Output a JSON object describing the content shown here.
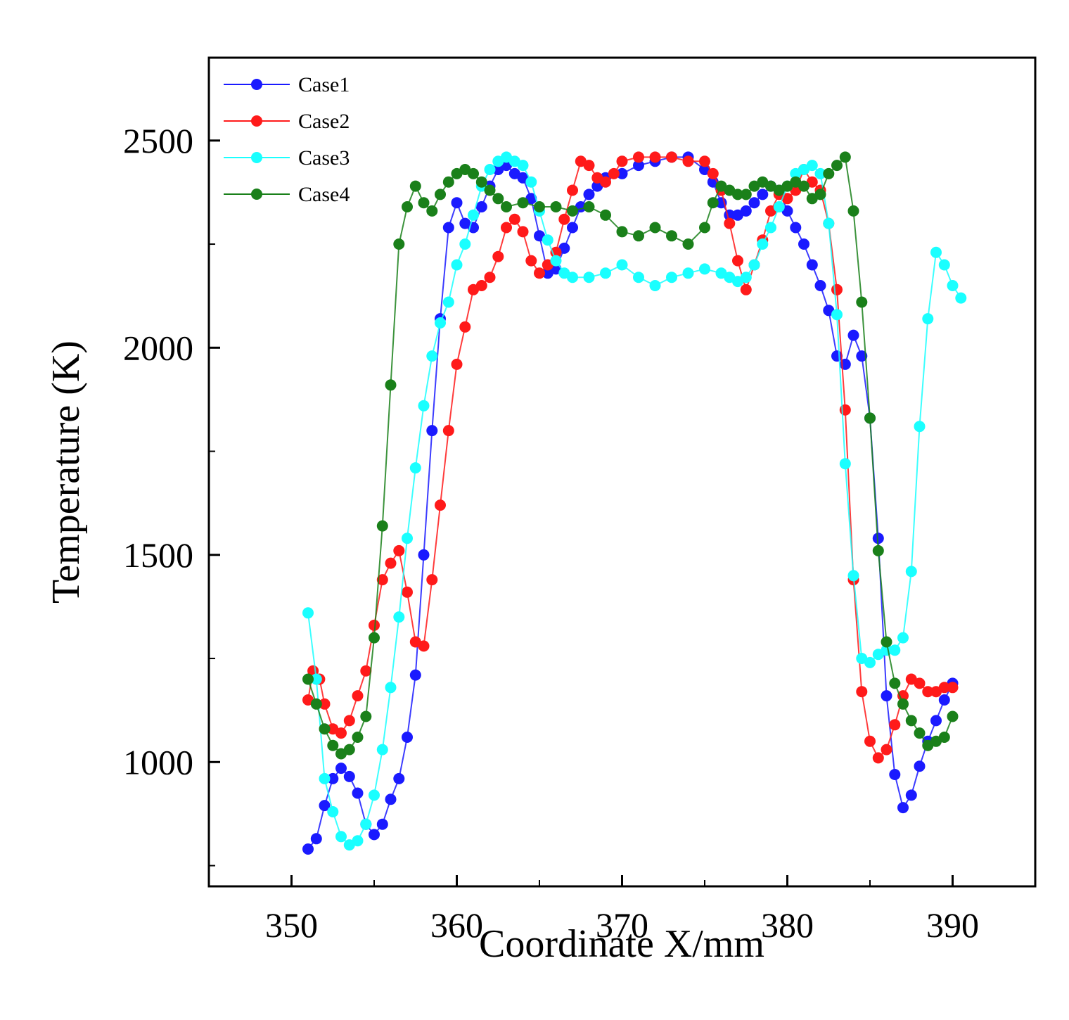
{
  "chart_data": {
    "type": "line",
    "title": "",
    "xlabel": "Coordinate X/mm",
    "ylabel": "Temperature (K)",
    "xlim": [
      345,
      395
    ],
    "ylim": [
      700,
      2700
    ],
    "xticks": [
      350,
      360,
      370,
      380,
      390
    ],
    "yticks": [
      1000,
      1500,
      2000,
      2500
    ],
    "x_minor_ticks": [
      355,
      365,
      375,
      385
    ],
    "y_minor_ticks": [
      750,
      1250,
      1750,
      2250
    ],
    "legend_position": "top-left",
    "grid": false,
    "series": [
      {
        "name": "Case1",
        "color": "#1a1aff",
        "points": [
          [
            351.0,
            790
          ],
          [
            351.5,
            815
          ],
          [
            352.0,
            895
          ],
          [
            352.5,
            960
          ],
          [
            353.0,
            985
          ],
          [
            353.5,
            965
          ],
          [
            354.0,
            925
          ],
          [
            354.5,
            850
          ],
          [
            355.0,
            825
          ],
          [
            355.5,
            850
          ],
          [
            356.0,
            910
          ],
          [
            356.5,
            960
          ],
          [
            357.0,
            1060
          ],
          [
            357.5,
            1210
          ],
          [
            358.0,
            1500
          ],
          [
            358.5,
            1800
          ],
          [
            359.0,
            2070
          ],
          [
            359.5,
            2290
          ],
          [
            360.0,
            2350
          ],
          [
            360.5,
            2300
          ],
          [
            361.0,
            2290
          ],
          [
            361.5,
            2340
          ],
          [
            362.0,
            2390
          ],
          [
            362.5,
            2430
          ],
          [
            363.0,
            2440
          ],
          [
            363.5,
            2420
          ],
          [
            364.0,
            2410
          ],
          [
            364.5,
            2360
          ],
          [
            365.0,
            2270
          ],
          [
            365.5,
            2180
          ],
          [
            366.0,
            2190
          ],
          [
            366.5,
            2240
          ],
          [
            367.0,
            2290
          ],
          [
            367.5,
            2340
          ],
          [
            368.0,
            2370
          ],
          [
            368.5,
            2390
          ],
          [
            369.0,
            2410
          ],
          [
            370.0,
            2420
          ],
          [
            371.0,
            2440
          ],
          [
            372.0,
            2450
          ],
          [
            373.0,
            2460
          ],
          [
            374.0,
            2460
          ],
          [
            375.0,
            2430
          ],
          [
            375.5,
            2400
          ],
          [
            376.0,
            2350
          ],
          [
            376.5,
            2320
          ],
          [
            377.0,
            2320
          ],
          [
            377.5,
            2330
          ],
          [
            378.0,
            2350
          ],
          [
            378.5,
            2370
          ],
          [
            379.0,
            2390
          ],
          [
            379.5,
            2380
          ],
          [
            380.0,
            2330
          ],
          [
            380.5,
            2290
          ],
          [
            381.0,
            2250
          ],
          [
            381.5,
            2200
          ],
          [
            382.0,
            2150
          ],
          [
            382.5,
            2090
          ],
          [
            383.0,
            1980
          ],
          [
            383.5,
            1960
          ],
          [
            384.0,
            2030
          ],
          [
            384.5,
            1980
          ],
          [
            385.0,
            1830
          ],
          [
            385.5,
            1540
          ],
          [
            386.0,
            1160
          ],
          [
            386.5,
            970
          ],
          [
            387.0,
            890
          ],
          [
            387.5,
            920
          ],
          [
            388.0,
            990
          ],
          [
            388.5,
            1050
          ],
          [
            389.0,
            1100
          ],
          [
            389.5,
            1150
          ],
          [
            390.0,
            1190
          ]
        ]
      },
      {
        "name": "Case2",
        "color": "#ff1a1a",
        "points": [
          [
            351.0,
            1150
          ],
          [
            351.3,
            1220
          ],
          [
            351.7,
            1200
          ],
          [
            352.0,
            1140
          ],
          [
            352.5,
            1080
          ],
          [
            353.0,
            1070
          ],
          [
            353.5,
            1100
          ],
          [
            354.0,
            1160
          ],
          [
            354.5,
            1220
          ],
          [
            355.0,
            1330
          ],
          [
            355.5,
            1440
          ],
          [
            356.0,
            1480
          ],
          [
            356.5,
            1510
          ],
          [
            357.0,
            1410
          ],
          [
            357.5,
            1290
          ],
          [
            358.0,
            1280
          ],
          [
            358.5,
            1440
          ],
          [
            359.0,
            1620
          ],
          [
            359.5,
            1800
          ],
          [
            360.0,
            1960
          ],
          [
            360.5,
            2050
          ],
          [
            361.0,
            2140
          ],
          [
            361.5,
            2150
          ],
          [
            362.0,
            2170
          ],
          [
            362.5,
            2220
          ],
          [
            363.0,
            2290
          ],
          [
            363.5,
            2310
          ],
          [
            364.0,
            2280
          ],
          [
            364.5,
            2210
          ],
          [
            365.0,
            2180
          ],
          [
            365.5,
            2200
          ],
          [
            366.0,
            2230
          ],
          [
            366.5,
            2310
          ],
          [
            367.0,
            2380
          ],
          [
            367.5,
            2450
          ],
          [
            368.0,
            2440
          ],
          [
            368.5,
            2410
          ],
          [
            369.0,
            2400
          ],
          [
            369.5,
            2420
          ],
          [
            370.0,
            2450
          ],
          [
            371.0,
            2460
          ],
          [
            372.0,
            2460
          ],
          [
            373.0,
            2460
          ],
          [
            374.0,
            2450
          ],
          [
            375.0,
            2450
          ],
          [
            375.5,
            2420
          ],
          [
            376.0,
            2380
          ],
          [
            376.5,
            2300
          ],
          [
            377.0,
            2210
          ],
          [
            377.5,
            2140
          ],
          [
            378.0,
            2200
          ],
          [
            378.5,
            2260
          ],
          [
            379.0,
            2330
          ],
          [
            379.5,
            2370
          ],
          [
            380.0,
            2360
          ],
          [
            380.5,
            2380
          ],
          [
            381.0,
            2430
          ],
          [
            381.5,
            2400
          ],
          [
            382.0,
            2380
          ],
          [
            382.5,
            2300
          ],
          [
            383.0,
            2140
          ],
          [
            383.5,
            1850
          ],
          [
            384.0,
            1440
          ],
          [
            384.5,
            1170
          ],
          [
            385.0,
            1050
          ],
          [
            385.5,
            1010
          ],
          [
            386.0,
            1030
          ],
          [
            386.5,
            1090
          ],
          [
            387.0,
            1160
          ],
          [
            387.5,
            1200
          ],
          [
            388.0,
            1190
          ],
          [
            388.5,
            1170
          ],
          [
            389.0,
            1170
          ],
          [
            389.5,
            1180
          ],
          [
            390.0,
            1180
          ]
        ]
      },
      {
        "name": "Case3",
        "color": "#1affff",
        "points": [
          [
            351.0,
            1360
          ],
          [
            351.5,
            1200
          ],
          [
            352.0,
            960
          ],
          [
            352.5,
            880
          ],
          [
            353.0,
            820
          ],
          [
            353.5,
            800
          ],
          [
            354.0,
            810
          ],
          [
            354.5,
            850
          ],
          [
            355.0,
            920
          ],
          [
            355.5,
            1030
          ],
          [
            356.0,
            1180
          ],
          [
            356.5,
            1350
          ],
          [
            357.0,
            1540
          ],
          [
            357.5,
            1710
          ],
          [
            358.0,
            1860
          ],
          [
            358.5,
            1980
          ],
          [
            359.0,
            2060
          ],
          [
            359.5,
            2110
          ],
          [
            360.0,
            2200
          ],
          [
            360.5,
            2250
          ],
          [
            361.0,
            2320
          ],
          [
            361.5,
            2390
          ],
          [
            362.0,
            2430
          ],
          [
            362.5,
            2450
          ],
          [
            363.0,
            2460
          ],
          [
            363.5,
            2450
          ],
          [
            364.0,
            2440
          ],
          [
            364.5,
            2400
          ],
          [
            365.0,
            2330
          ],
          [
            365.5,
            2260
          ],
          [
            366.0,
            2210
          ],
          [
            366.5,
            2180
          ],
          [
            367.0,
            2170
          ],
          [
            368.0,
            2170
          ],
          [
            369.0,
            2180
          ],
          [
            370.0,
            2200
          ],
          [
            371.0,
            2170
          ],
          [
            372.0,
            2150
          ],
          [
            373.0,
            2170
          ],
          [
            374.0,
            2180
          ],
          [
            375.0,
            2190
          ],
          [
            376.0,
            2180
          ],
          [
            376.5,
            2170
          ],
          [
            377.0,
            2160
          ],
          [
            377.5,
            2170
          ],
          [
            378.0,
            2200
          ],
          [
            378.5,
            2250
          ],
          [
            379.0,
            2290
          ],
          [
            379.5,
            2340
          ],
          [
            380.0,
            2390
          ],
          [
            380.5,
            2420
          ],
          [
            381.0,
            2430
          ],
          [
            381.5,
            2440
          ],
          [
            382.0,
            2420
          ],
          [
            382.5,
            2300
          ],
          [
            383.0,
            2080
          ],
          [
            383.5,
            1720
          ],
          [
            384.0,
            1450
          ],
          [
            384.5,
            1250
          ],
          [
            385.0,
            1240
          ],
          [
            385.5,
            1260
          ],
          [
            386.0,
            1270
          ],
          [
            386.5,
            1270
          ],
          [
            387.0,
            1300
          ],
          [
            387.5,
            1460
          ],
          [
            388.0,
            1810
          ],
          [
            388.5,
            2070
          ],
          [
            389.0,
            2230
          ],
          [
            389.5,
            2200
          ],
          [
            390.0,
            2150
          ],
          [
            390.5,
            2120
          ]
        ]
      },
      {
        "name": "Case4",
        "color": "#1a801a",
        "points": [
          [
            351.0,
            1200
          ],
          [
            351.5,
            1140
          ],
          [
            352.0,
            1080
          ],
          [
            352.5,
            1040
          ],
          [
            353.0,
            1020
          ],
          [
            353.5,
            1030
          ],
          [
            354.0,
            1060
          ],
          [
            354.5,
            1110
          ],
          [
            355.0,
            1300
          ],
          [
            355.5,
            1570
          ],
          [
            356.0,
            1910
          ],
          [
            356.5,
            2250
          ],
          [
            357.0,
            2340
          ],
          [
            357.5,
            2390
          ],
          [
            358.0,
            2350
          ],
          [
            358.5,
            2330
          ],
          [
            359.0,
            2370
          ],
          [
            359.5,
            2400
          ],
          [
            360.0,
            2420
          ],
          [
            360.5,
            2430
          ],
          [
            361.0,
            2420
          ],
          [
            361.5,
            2400
          ],
          [
            362.0,
            2380
          ],
          [
            362.5,
            2360
          ],
          [
            363.0,
            2340
          ],
          [
            364.0,
            2350
          ],
          [
            365.0,
            2340
          ],
          [
            366.0,
            2340
          ],
          [
            367.0,
            2330
          ],
          [
            368.0,
            2340
          ],
          [
            369.0,
            2320
          ],
          [
            370.0,
            2280
          ],
          [
            371.0,
            2270
          ],
          [
            372.0,
            2290
          ],
          [
            373.0,
            2270
          ],
          [
            374.0,
            2250
          ],
          [
            375.0,
            2290
          ],
          [
            375.5,
            2350
          ],
          [
            376.0,
            2390
          ],
          [
            376.5,
            2380
          ],
          [
            377.0,
            2370
          ],
          [
            377.5,
            2370
          ],
          [
            378.0,
            2390
          ],
          [
            378.5,
            2400
          ],
          [
            379.0,
            2390
          ],
          [
            379.5,
            2380
          ],
          [
            380.0,
            2390
          ],
          [
            380.5,
            2400
          ],
          [
            381.0,
            2390
          ],
          [
            381.5,
            2360
          ],
          [
            382.0,
            2370
          ],
          [
            382.5,
            2420
          ],
          [
            383.0,
            2440
          ],
          [
            383.5,
            2460
          ],
          [
            384.0,
            2330
          ],
          [
            384.5,
            2110
          ],
          [
            385.0,
            1830
          ],
          [
            385.5,
            1510
          ],
          [
            386.0,
            1290
          ],
          [
            386.5,
            1190
          ],
          [
            387.0,
            1140
          ],
          [
            387.5,
            1100
          ],
          [
            388.0,
            1070
          ],
          [
            388.5,
            1040
          ],
          [
            389.0,
            1050
          ],
          [
            389.5,
            1060
          ],
          [
            390.0,
            1110
          ]
        ]
      }
    ]
  }
}
